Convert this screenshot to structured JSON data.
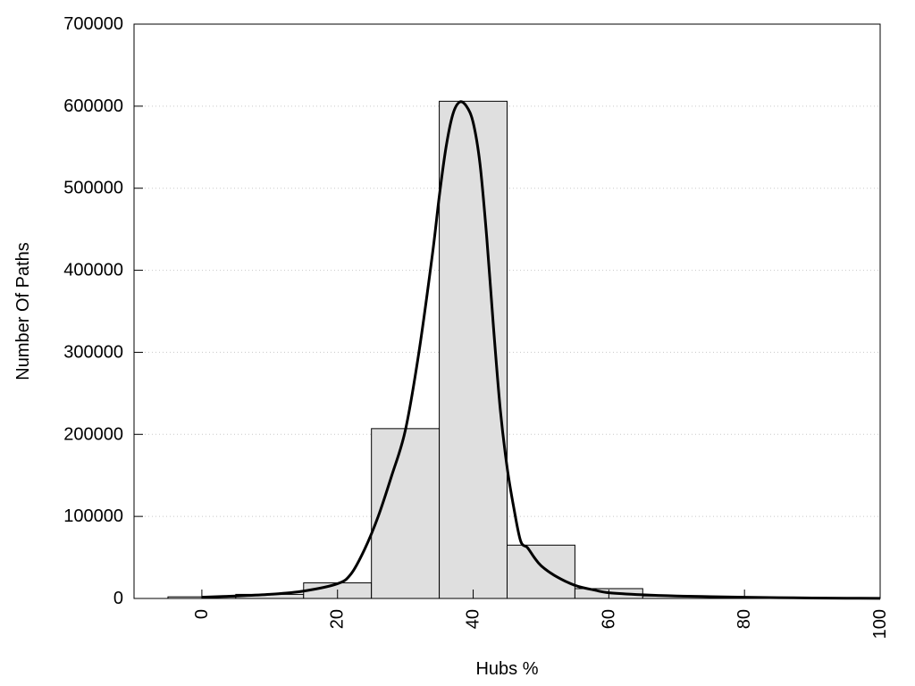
{
  "chart_data": {
    "type": "bar",
    "title": "",
    "xlabel": "Hubs %",
    "ylabel": "Number Of Paths",
    "xlim": [
      -10,
      100
    ],
    "ylim": [
      0,
      700000
    ],
    "xticks": [
      0,
      20,
      40,
      60,
      80,
      100
    ],
    "yticks": [
      0,
      100000,
      200000,
      300000,
      400000,
      500000,
      600000,
      700000
    ],
    "grid": "horizontal dotted",
    "bar_width": 10,
    "bar_color": "#dfdfdf",
    "line_color": "#000000",
    "bars": [
      {
        "x": 0,
        "value": 2000
      },
      {
        "x": 10,
        "value": 5000
      },
      {
        "x": 20,
        "value": 19000
      },
      {
        "x": 30,
        "value": 207000
      },
      {
        "x": 40,
        "value": 606000
      },
      {
        "x": 50,
        "value": 65000
      },
      {
        "x": 60,
        "value": 12000
      },
      {
        "x": 70,
        "value": 3000
      },
      {
        "x": 80,
        "value": 1500
      },
      {
        "x": 90,
        "value": 500
      },
      {
        "x": 100,
        "value": 200
      }
    ],
    "curve": {
      "x": [
        0,
        5,
        10,
        15,
        20,
        22,
        24,
        26,
        28,
        30,
        32,
        34,
        35,
        36,
        37,
        38,
        39,
        40,
        41,
        42,
        43,
        44,
        45,
        46,
        47,
        48,
        49,
        50,
        52,
        55,
        58,
        60,
        65,
        70,
        75,
        80,
        85,
        90,
        95,
        100
      ],
      "y": [
        1500,
        3000,
        5000,
        9000,
        18000,
        30000,
        60000,
        100000,
        150000,
        205000,
        300000,
        420000,
        490000,
        550000,
        590000,
        605000,
        600000,
        580000,
        530000,
        440000,
        330000,
        230000,
        160000,
        110000,
        70000,
        62000,
        50000,
        40000,
        28000,
        16000,
        10000,
        7000,
        4500,
        3000,
        2200,
        1500,
        1000,
        600,
        300,
        100
      ]
    }
  }
}
